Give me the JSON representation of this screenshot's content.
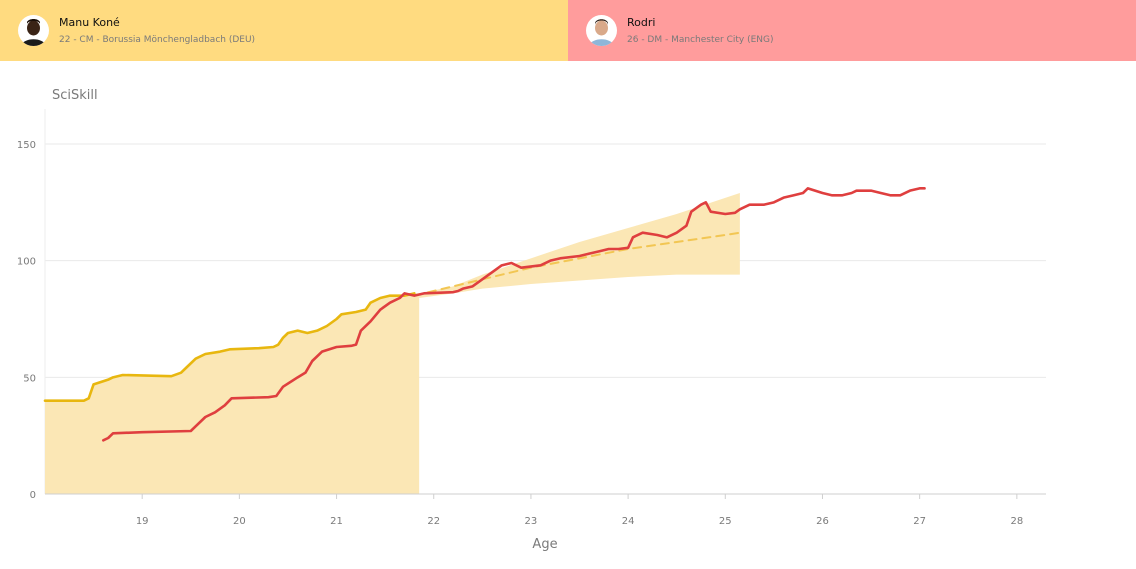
{
  "players": [
    {
      "name": "Manu Koné",
      "details": "22 - CM - Borussia Mönchengladbach (DEU)",
      "color": "#ffdb80",
      "line_color": "#e8b70f",
      "avatar_icon": "player-photo-icon"
    },
    {
      "name": "Rodri",
      "details": "26 - DM - Manchester City (ENG)",
      "color": "#ff9c9c",
      "line_color": "#df3f3f",
      "avatar_icon": "player-photo-icon"
    }
  ],
  "chart_data": {
    "type": "line",
    "title": "SciSkill",
    "xlabel": "Age",
    "ylabel": "SciSkill",
    "xlim": [
      18,
      28.3
    ],
    "ylim": [
      0,
      165
    ],
    "xticks": [
      19,
      20,
      21,
      22,
      23,
      24,
      25,
      26,
      27,
      28
    ],
    "yticks": [
      0,
      50,
      100,
      150
    ],
    "grid": true,
    "series": [
      {
        "name": "Manu Koné",
        "color": "#e8b70f",
        "points": [
          [
            18.0,
            40
          ],
          [
            18.4,
            40
          ],
          [
            18.45,
            41
          ],
          [
            18.5,
            47
          ],
          [
            18.65,
            49
          ],
          [
            18.7,
            50
          ],
          [
            18.8,
            51
          ],
          [
            19.3,
            50.5
          ],
          [
            19.4,
            52
          ],
          [
            19.45,
            54
          ],
          [
            19.55,
            58
          ],
          [
            19.65,
            60
          ],
          [
            19.8,
            61
          ],
          [
            19.9,
            62
          ],
          [
            20.2,
            62.5
          ],
          [
            20.35,
            63
          ],
          [
            20.4,
            64
          ],
          [
            20.45,
            67
          ],
          [
            20.5,
            69
          ],
          [
            20.6,
            70
          ],
          [
            20.7,
            69
          ],
          [
            20.8,
            70
          ],
          [
            20.9,
            72
          ],
          [
            21.0,
            75
          ],
          [
            21.05,
            77
          ],
          [
            21.2,
            78
          ],
          [
            21.3,
            79
          ],
          [
            21.35,
            82
          ],
          [
            21.45,
            84
          ],
          [
            21.55,
            85
          ],
          [
            21.7,
            85
          ],
          [
            21.8,
            86
          ]
        ]
      },
      {
        "name": "Rodri",
        "color": "#df3f3f",
        "points": [
          [
            18.6,
            23
          ],
          [
            18.65,
            24
          ],
          [
            18.7,
            26
          ],
          [
            19.0,
            26.5
          ],
          [
            19.5,
            27
          ],
          [
            19.55,
            29
          ],
          [
            19.65,
            33
          ],
          [
            19.75,
            35
          ],
          [
            19.85,
            38
          ],
          [
            19.92,
            41
          ],
          [
            20.3,
            41.5
          ],
          [
            20.38,
            42
          ],
          [
            20.45,
            46
          ],
          [
            20.6,
            50
          ],
          [
            20.68,
            52
          ],
          [
            20.75,
            57
          ],
          [
            20.85,
            61
          ],
          [
            21.0,
            63
          ],
          [
            21.15,
            63.5
          ],
          [
            21.2,
            64
          ],
          [
            21.25,
            70
          ],
          [
            21.35,
            74
          ],
          [
            21.45,
            79
          ],
          [
            21.55,
            82
          ],
          [
            21.65,
            84
          ],
          [
            21.7,
            86
          ],
          [
            21.8,
            85
          ],
          [
            21.9,
            86
          ],
          [
            22.2,
            86.5
          ],
          [
            22.25,
            87
          ],
          [
            22.3,
            88
          ],
          [
            22.4,
            89
          ],
          [
            22.5,
            92
          ],
          [
            22.6,
            95
          ],
          [
            22.7,
            98
          ],
          [
            22.8,
            99
          ],
          [
            22.9,
            97
          ],
          [
            23.1,
            98
          ],
          [
            23.2,
            100
          ],
          [
            23.3,
            101
          ],
          [
            23.5,
            102
          ],
          [
            23.6,
            103
          ],
          [
            23.7,
            104
          ],
          [
            23.8,
            105
          ],
          [
            23.9,
            105
          ],
          [
            24.0,
            105.5
          ],
          [
            24.05,
            110
          ],
          [
            24.15,
            112
          ],
          [
            24.3,
            111
          ],
          [
            24.4,
            110
          ],
          [
            24.5,
            112
          ],
          [
            24.6,
            115
          ],
          [
            24.65,
            121
          ],
          [
            24.75,
            124
          ],
          [
            24.8,
            125
          ],
          [
            24.85,
            121
          ],
          [
            25.0,
            120
          ],
          [
            25.1,
            120.5
          ],
          [
            25.15,
            122
          ],
          [
            25.25,
            124
          ],
          [
            25.4,
            124
          ],
          [
            25.5,
            125
          ],
          [
            25.6,
            127
          ],
          [
            25.7,
            128
          ],
          [
            25.8,
            129
          ],
          [
            25.85,
            131
          ],
          [
            26.0,
            129
          ],
          [
            26.1,
            128
          ],
          [
            26.2,
            128
          ],
          [
            26.3,
            129
          ],
          [
            26.35,
            130
          ],
          [
            26.5,
            130
          ],
          [
            26.6,
            129
          ],
          [
            26.7,
            128
          ],
          [
            26.8,
            128
          ],
          [
            26.9,
            130
          ],
          [
            27.0,
            131
          ],
          [
            27.05,
            131
          ]
        ]
      },
      {
        "name": "Manu Koné projection",
        "color": "#f2c653",
        "style": "dashed",
        "points": [
          [
            21.8,
            85
          ],
          [
            22.5,
            92
          ],
          [
            23.0,
            97
          ],
          [
            23.5,
            101
          ],
          [
            24.0,
            105
          ],
          [
            24.5,
            108
          ],
          [
            25.0,
            111
          ],
          [
            25.15,
            112
          ]
        ]
      }
    ],
    "bands": [
      {
        "name": "Manu Koné history range",
        "color": "#fbe7b5",
        "x_start": 18.0,
        "x_end": 21.85,
        "y_start": 0,
        "y_top_follows_series": "Manu Koné"
      },
      {
        "name": "Manu Koné projection range",
        "color": "#fbe7b5",
        "upper": [
          [
            21.85,
            86
          ],
          [
            22.2,
            89
          ],
          [
            22.5,
            94
          ],
          [
            23.0,
            101
          ],
          [
            23.5,
            108
          ],
          [
            24.0,
            114
          ],
          [
            24.5,
            120
          ],
          [
            25.15,
            129
          ]
        ],
        "lower": [
          [
            21.85,
            84
          ],
          [
            22.2,
            86
          ],
          [
            22.5,
            88
          ],
          [
            23.0,
            90
          ],
          [
            23.5,
            91.5
          ],
          [
            24.0,
            93
          ],
          [
            24.5,
            94
          ],
          [
            25.15,
            94
          ]
        ]
      }
    ]
  }
}
